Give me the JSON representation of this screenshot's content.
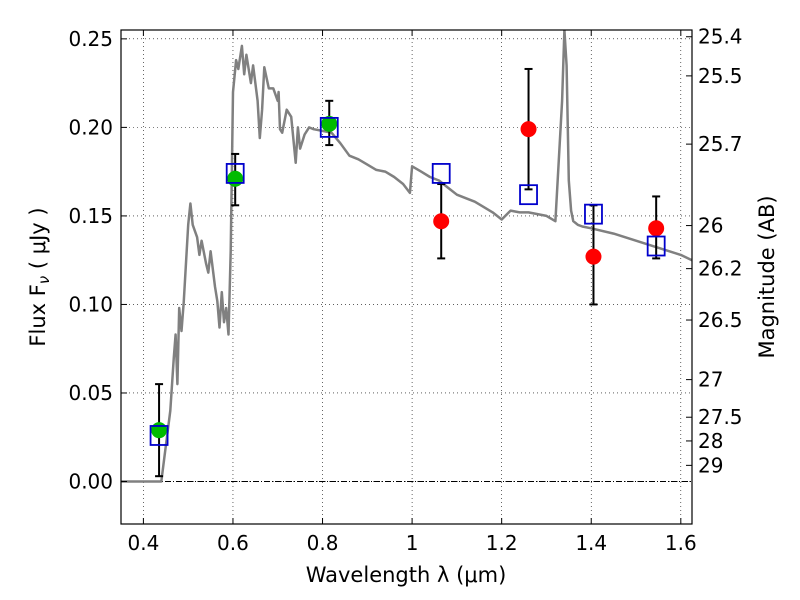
{
  "chart_data": {
    "type": "scatter",
    "xlabel": "Wavelength  λ (μm)",
    "ylabel": "Flux  F",
    "ylabel_sub": "ν",
    "ylabel_unit": " (  μJy )",
    "y2label": "Magnitude (AB)",
    "xlim": [
      0.35,
      1.625
    ],
    "ylim": [
      -0.024,
      0.255
    ],
    "x_ticks": [
      0.4,
      0.6,
      0.8,
      1.0,
      1.2,
      1.4,
      1.6
    ],
    "x_tick_labels": [
      "0.4",
      "0.6",
      "0.8",
      "1",
      "1.2",
      "1.4",
      "1.6"
    ],
    "y_ticks": [
      0.0,
      0.05,
      0.1,
      0.15,
      0.2,
      0.25
    ],
    "y_tick_labels": [
      "0.00",
      "0.05",
      "0.10",
      "0.15",
      "0.20",
      "0.25"
    ],
    "y2_ticks": [
      {
        "label": "25.4",
        "mag": 25.4
      },
      {
        "label": "25.5",
        "mag": 25.5
      },
      {
        "label": "25.7",
        "mag": 25.7
      },
      {
        "label": "26",
        "mag": 26.0
      },
      {
        "label": "26.2",
        "mag": 26.2
      },
      {
        "label": "26.5",
        "mag": 26.5
      },
      {
        "label": "27",
        "mag": 27.0
      },
      {
        "label": "27.5",
        "mag": 27.5
      },
      {
        "label": "28",
        "mag": 28.0
      },
      {
        "label": "29",
        "mag": 29.0
      }
    ],
    "grid": true,
    "colors": {
      "model": "#808080",
      "model_points": "#0000cc",
      "detection": "#00bb00",
      "measurement": "#ff0000",
      "errorbar": "#000000"
    },
    "model_spectrum": {
      "x": [
        0.35,
        0.395,
        0.43,
        0.44,
        0.45,
        0.46,
        0.468,
        0.472,
        0.476,
        0.48,
        0.485,
        0.49,
        0.5,
        0.505,
        0.51,
        0.52,
        0.525,
        0.53,
        0.54,
        0.545,
        0.55,
        0.56,
        0.565,
        0.57,
        0.575,
        0.58,
        0.585,
        0.59,
        0.595,
        0.6,
        0.607,
        0.612,
        0.62,
        0.625,
        0.63,
        0.64,
        0.645,
        0.655,
        0.66,
        0.665,
        0.67,
        0.68,
        0.69,
        0.7,
        0.702,
        0.705,
        0.71,
        0.72,
        0.73,
        0.74,
        0.745,
        0.75,
        0.76,
        0.77,
        0.78,
        0.8,
        0.82,
        0.84,
        0.86,
        0.88,
        0.9,
        0.92,
        0.94,
        0.96,
        0.98,
        0.995,
        1.0,
        1.02,
        1.04,
        1.06,
        1.08,
        1.1,
        1.12,
        1.14,
        1.16,
        1.18,
        1.2,
        1.22,
        1.24,
        1.26,
        1.28,
        1.3,
        1.32,
        1.335,
        1.34,
        1.345,
        1.35,
        1.355,
        1.36,
        1.365,
        1.37,
        1.38,
        1.4,
        1.45,
        1.5,
        1.55,
        1.6,
        1.625
      ],
      "y": [
        0.0,
        0.0,
        0.0,
        0.0,
        0.02,
        0.04,
        0.07,
        0.083,
        0.055,
        0.098,
        0.085,
        0.101,
        0.145,
        0.157,
        0.145,
        0.138,
        0.128,
        0.136,
        0.123,
        0.118,
        0.13,
        0.11,
        0.102,
        0.087,
        0.107,
        0.09,
        0.098,
        0.083,
        0.13,
        0.22,
        0.238,
        0.233,
        0.246,
        0.23,
        0.241,
        0.225,
        0.235,
        0.215,
        0.194,
        0.21,
        0.234,
        0.222,
        0.222,
        0.215,
        0.22,
        0.199,
        0.197,
        0.21,
        0.206,
        0.18,
        0.2,
        0.188,
        0.196,
        0.2,
        0.199,
        0.198,
        0.197,
        0.191,
        0.184,
        0.182,
        0.179,
        0.176,
        0.175,
        0.172,
        0.168,
        0.163,
        0.178,
        0.175,
        0.172,
        0.17,
        0.166,
        0.162,
        0.16,
        0.158,
        0.155,
        0.152,
        0.148,
        0.153,
        0.152,
        0.152,
        0.151,
        0.15,
        0.147,
        0.215,
        0.255,
        0.235,
        0.17,
        0.153,
        0.147,
        0.146,
        0.145,
        0.144,
        0.143,
        0.14,
        0.136,
        0.132,
        0.128,
        0.125
      ]
    },
    "series": [
      {
        "marker": "square",
        "x": [
          0.435,
          0.605,
          0.815,
          1.065,
          1.26,
          1.405,
          1.545
        ],
        "values": [
          0.026,
          0.174,
          0.2,
          0.174,
          0.162,
          0.151,
          0.133
        ]
      },
      {
        "marker": "circle",
        "x": [
          0.435,
          0.605,
          0.815,
          1.065,
          1.26,
          1.405,
          1.545
        ],
        "values": [
          0.029,
          0.171,
          0.202,
          0.147,
          0.199,
          0.127,
          0.143
        ],
        "err_low": [
          0.003,
          0.156,
          0.19,
          0.126,
          0.165,
          0.1,
          0.126
        ],
        "err_high": [
          0.055,
          0.185,
          0.215,
          0.168,
          0.233,
          0.156,
          0.161
        ],
        "colors": [
          "#00bb00",
          "#00bb00",
          "#00bb00",
          "#ff0000",
          "#ff0000",
          "#ff0000",
          "#ff0000"
        ]
      }
    ]
  }
}
